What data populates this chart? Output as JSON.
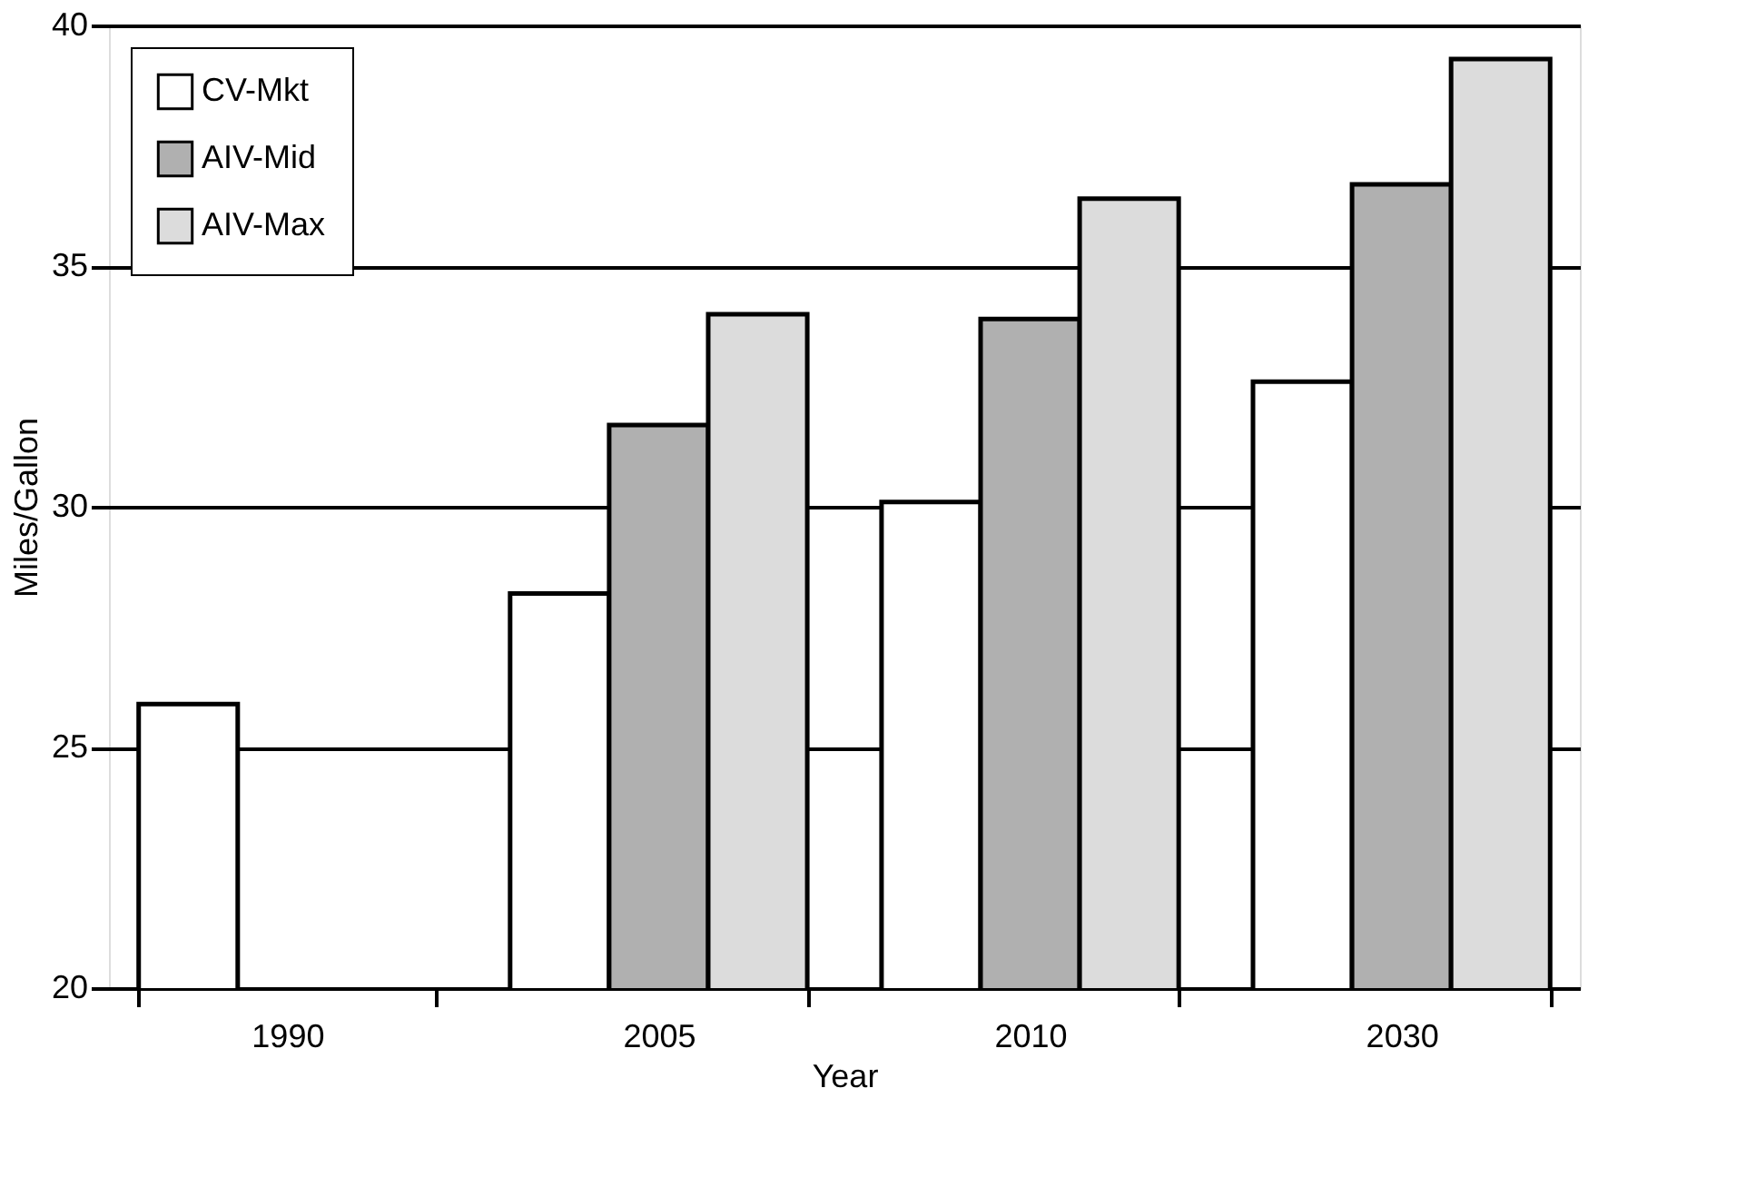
{
  "chart_data": {
    "type": "bar",
    "xlabel": "Year",
    "ylabel": "Miles/Gallon",
    "categories": [
      "1990",
      "2005",
      "2010",
      "2030"
    ],
    "series": [
      {
        "name": "CV-Mkt",
        "color": "#ffffff",
        "values": [
          25.9,
          28.2,
          30.1,
          32.6
        ]
      },
      {
        "name": "AIV-Mid",
        "color": "#b0b0b0",
        "values": [
          null,
          31.7,
          33.9,
          36.7
        ]
      },
      {
        "name": "AIV-Max",
        "color": "#dcdcdc",
        "values": [
          null,
          34.0,
          36.4,
          39.3
        ]
      }
    ],
    "ylim": [
      20,
      40
    ],
    "yticks": [
      20,
      25,
      30,
      35,
      40
    ],
    "grid": "y",
    "legend": "top left"
  }
}
